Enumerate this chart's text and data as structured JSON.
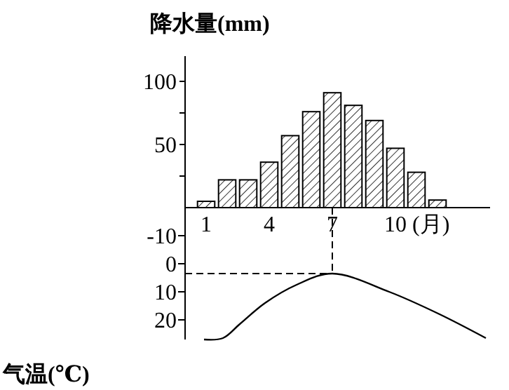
{
  "chart_data": [
    {
      "type": "bar",
      "ylabel": "降水量(mm)",
      "xlabel": "(月)",
      "x": [
        1,
        2,
        3,
        4,
        5,
        6,
        7,
        8,
        9,
        10,
        11,
        12
      ],
      "xlim": [
        0,
        14.5
      ],
      "xticks": [
        1,
        4,
        7,
        10
      ],
      "ylim": [
        0,
        120
      ],
      "yticks": [
        {
          "value": 25,
          "label": null
        },
        50,
        {
          "value": 75,
          "label": null
        },
        100
      ],
      "series": [
        {
          "color": "#000000",
          "values": [
            5,
            22,
            22,
            36,
            57,
            76,
            91,
            81,
            69,
            47,
            28,
            6
          ]
        }
      ]
    },
    {
      "type": "line",
      "ylabel": "气温(℃)",
      "xlim": [
        0,
        14.5
      ],
      "tick_labels": "y",
      "ylim": [
        27,
        -20
      ],
      "yticks": [
        -10,
        0,
        10,
        20
      ],
      "series": [
        {
          "color": "#000000",
          "x": [
            0.9,
            1.8,
            2.6,
            3.8,
            5.3,
            7,
            9.7,
            12.1,
            14.3
          ],
          "values": [
            27,
            26.5,
            21.5,
            14,
            7.5,
            3.5,
            10,
            18,
            26.5
          ]
        }
      ],
      "ref_lines": [
        {
          "axis": "x",
          "value": 7,
          "line_style": "dashed"
        },
        {
          "axis": "y",
          "value": 3.5,
          "line_style": "dashed"
        }
      ],
      "marker": "none",
      "line_style": "solid"
    }
  ]
}
